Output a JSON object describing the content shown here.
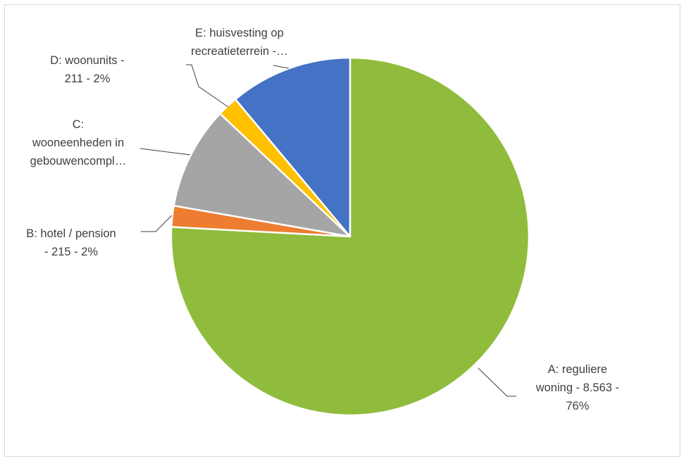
{
  "chart_data": {
    "type": "pie",
    "title": "",
    "series": [
      {
        "categories": [
          "A: reguliere woning",
          "B: hotel / pension",
          "C: wooneenheden in gebouwencompl…",
          "D: woonunits",
          "E: huisvesting op recreatieterrein"
        ],
        "values": [
          8563,
          215,
          1050,
          211,
          1250
        ],
        "colors": [
          "#8fbc3c",
          "#ed7d31",
          "#a5a5a5",
          "#ffc000",
          "#4472c4"
        ]
      }
    ],
    "data_labels": [
      {
        "lines": [
          "A: reguliere",
          "woning  - 8.563 -",
          "76%"
        ]
      },
      {
        "lines": [
          "B: hotel / pension",
          "- 215 - 2%"
        ]
      },
      {
        "lines": [
          "C:",
          "wooneenheden in",
          "gebouwencompl…"
        ]
      },
      {
        "lines": [
          "D: woonunits  -",
          "211 - 2%"
        ]
      },
      {
        "lines": [
          "E: huisvesting op",
          "recreatieterrein  -…"
        ]
      }
    ],
    "legend": "none"
  }
}
